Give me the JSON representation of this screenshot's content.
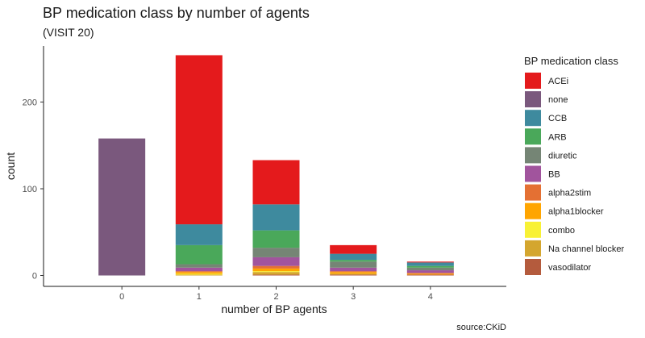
{
  "chart_data": {
    "type": "bar",
    "stacked": true,
    "title": "BP medication class by number of agents",
    "subtitle": "(VISIT 20)",
    "xlabel": "number of BP agents",
    "ylabel": "count",
    "caption": "source:CKiD",
    "categories": [
      "0",
      "1",
      "2",
      "3",
      "4"
    ],
    "ylim": [
      0,
      255
    ],
    "yticks": [
      0,
      100,
      200
    ],
    "grid": false,
    "legend": {
      "title": "BP medication class",
      "position": "right"
    },
    "series": [
      {
        "name": "ACEi",
        "color": "#E41A1C",
        "values": [
          0,
          195,
          51,
          10,
          1
        ]
      },
      {
        "name": "none",
        "color": "#7A587D",
        "values": [
          158,
          0,
          0,
          0,
          0
        ]
      },
      {
        "name": "CCB",
        "color": "#3E8A9E",
        "values": [
          0,
          24,
          30,
          7,
          4
        ]
      },
      {
        "name": "ARB",
        "color": "#4AA85A",
        "values": [
          0,
          22,
          20,
          2,
          2
        ]
      },
      {
        "name": "diuretic",
        "color": "#758575",
        "values": [
          0,
          4,
          11,
          7,
          3
        ]
      },
      {
        "name": "BB",
        "color": "#A1549D",
        "values": [
          0,
          4,
          10,
          4,
          3
        ]
      },
      {
        "name": "alpha2stim",
        "color": "#E47033",
        "values": [
          0,
          1,
          3,
          1,
          1
        ]
      },
      {
        "name": "alpha1blocker",
        "color": "#FFA500",
        "values": [
          0,
          2,
          3,
          2,
          1
        ]
      },
      {
        "name": "combo",
        "color": "#F8F135",
        "values": [
          0,
          1,
          1,
          0,
          0
        ]
      },
      {
        "name": "Na channel blocker",
        "color": "#D4A62E",
        "values": [
          0,
          1,
          3,
          1,
          0
        ]
      },
      {
        "name": "vasodilator",
        "color": "#B45B3D",
        "values": [
          0,
          0,
          1,
          1,
          1
        ]
      }
    ]
  }
}
